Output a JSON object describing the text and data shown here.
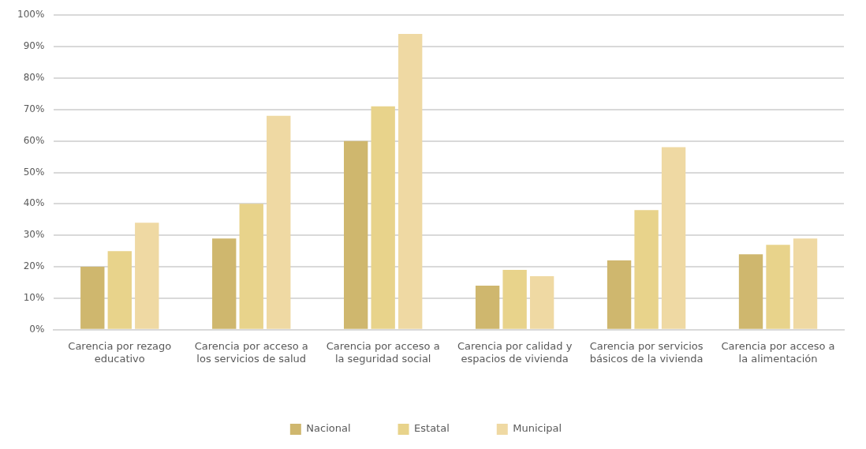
{
  "chart_data": {
    "type": "bar",
    "categories": [
      "Carencia por rezago educativo",
      "Carencia por acceso a los servicios de salud",
      "Carencia por acceso a la seguridad social",
      "Carencia por calidad y espacios de vivienda",
      "Carencia por servicios básicos de la vivienda",
      "Carencia por acceso a la alimentación"
    ],
    "series": [
      {
        "name": "Nacional",
        "color": "#cfb76e",
        "values": [
          20,
          29,
          60,
          14,
          22,
          24
        ]
      },
      {
        "name": "Estatal",
        "color": "#e8d38b",
        "values": [
          25,
          40,
          71,
          19,
          38,
          27
        ]
      },
      {
        "name": "Municipal",
        "color": "#efd9a3",
        "values": [
          34,
          68,
          94,
          17,
          58,
          29
        ]
      }
    ],
    "ylim": [
      0,
      100
    ],
    "yticks": [
      {
        "value": 0,
        "label": "0%"
      },
      {
        "value": 10,
        "label": "10%"
      },
      {
        "value": 20,
        "label": "20%"
      },
      {
        "value": 30,
        "label": "30%"
      },
      {
        "value": 40,
        "label": "40%"
      },
      {
        "value": 50,
        "label": "50%"
      },
      {
        "value": 60,
        "label": "60%"
      },
      {
        "value": 70,
        "label": "70%"
      },
      {
        "value": 80,
        "label": "80%"
      },
      {
        "value": 90,
        "label": "90%"
      },
      {
        "value": 100,
        "label": "100%"
      }
    ],
    "grid": "y",
    "legend": "bottom"
  }
}
